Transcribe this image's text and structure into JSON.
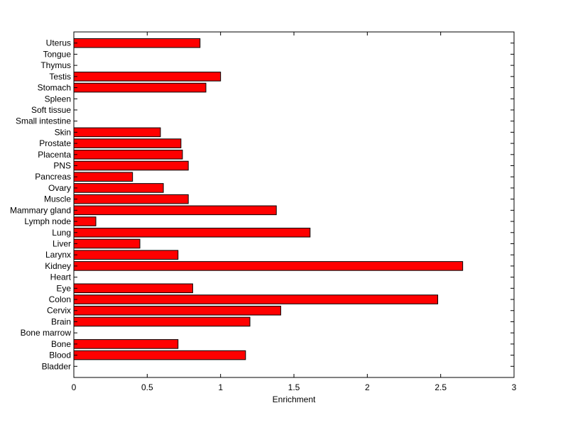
{
  "chart_data": {
    "type": "bar",
    "orientation": "horizontal",
    "title": "",
    "xlabel": "Enrichment",
    "ylabel": "",
    "xlim": [
      0,
      3
    ],
    "xticks": [
      "0",
      "0.5",
      "1",
      "1.5",
      "2",
      "2.5",
      "3"
    ],
    "grid": false,
    "legend": "none",
    "bar_color": "#ff0000",
    "categories": [
      "Bladder",
      "Blood",
      "Bone",
      "Bone marrow",
      "Brain",
      "Cervix",
      "Colon",
      "Eye",
      "Heart",
      "Kidney",
      "Larynx",
      "Liver",
      "Lung",
      "Lymph node",
      "Mammary gland",
      "Muscle",
      "Ovary",
      "Pancreas",
      "PNS",
      "Placenta",
      "Prostate",
      "Skin",
      "Small intestine",
      "Soft tissue",
      "Spleen",
      "Stomach",
      "Testis",
      "Thymus",
      "Tongue",
      "Uterus"
    ],
    "values": [
      0,
      1.17,
      0.71,
      0,
      1.2,
      1.41,
      2.48,
      0.81,
      0,
      2.65,
      0.71,
      0.45,
      1.61,
      0.15,
      1.38,
      0.78,
      0.61,
      0.4,
      0.78,
      0.74,
      0.73,
      0.59,
      0,
      0,
      0,
      0.9,
      1.0,
      0,
      0,
      0.86
    ]
  }
}
